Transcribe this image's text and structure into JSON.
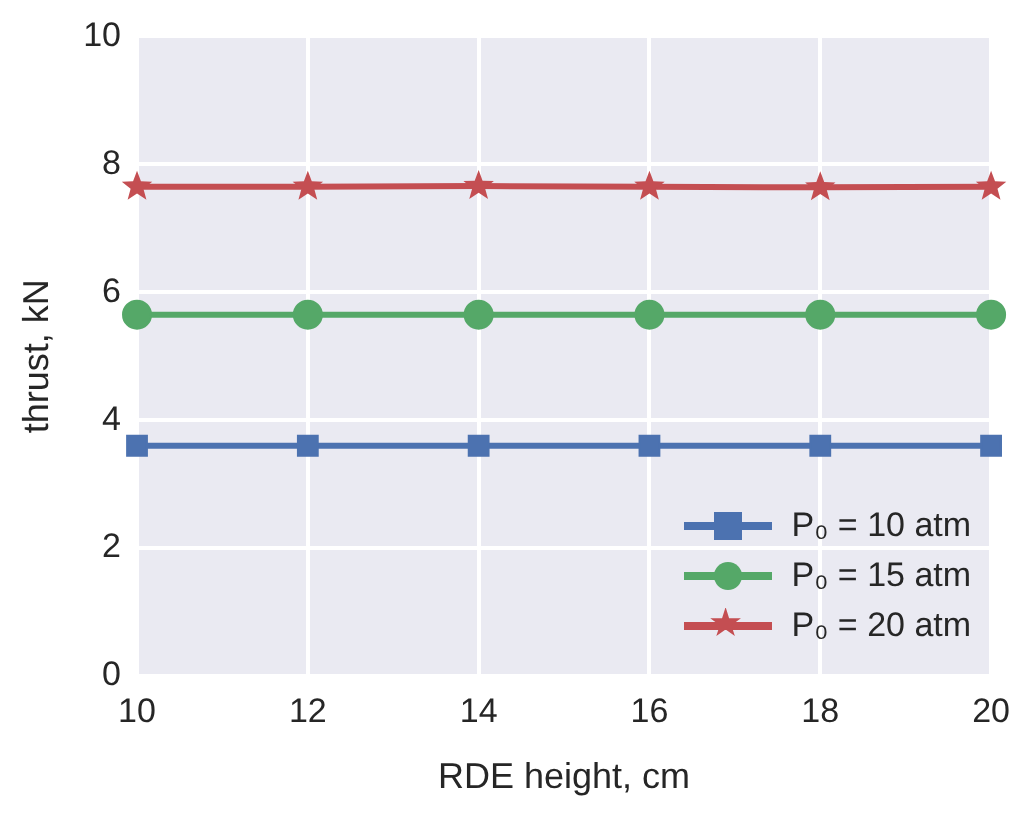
{
  "chart_data": {
    "type": "line",
    "xlabel": "RDE height, cm",
    "ylabel": "thrust, kN",
    "x": [
      10,
      12,
      14,
      16,
      18,
      20
    ],
    "series": [
      {
        "name": "P₀ = 10 atm",
        "color": "#4c72b0",
        "marker": "square",
        "values": [
          3.6,
          3.6,
          3.6,
          3.6,
          3.6,
          3.6
        ]
      },
      {
        "name": "P₀ = 15 atm",
        "color": "#55a868",
        "marker": "circle",
        "values": [
          5.65,
          5.65,
          5.65,
          5.65,
          5.65,
          5.65
        ]
      },
      {
        "name": "P₀ = 20 atm",
        "color": "#c44e52",
        "marker": "star",
        "values": [
          7.65,
          7.65,
          7.66,
          7.65,
          7.64,
          7.65
        ]
      }
    ],
    "xlim": [
      10,
      20
    ],
    "xticks": [
      10,
      12,
      14,
      16,
      18,
      20
    ],
    "ylim": [
      0,
      10
    ],
    "yticks": [
      0,
      2,
      4,
      6,
      8,
      10
    ],
    "grid": true,
    "legend": "bottom right",
    "line_style": "solid"
  }
}
